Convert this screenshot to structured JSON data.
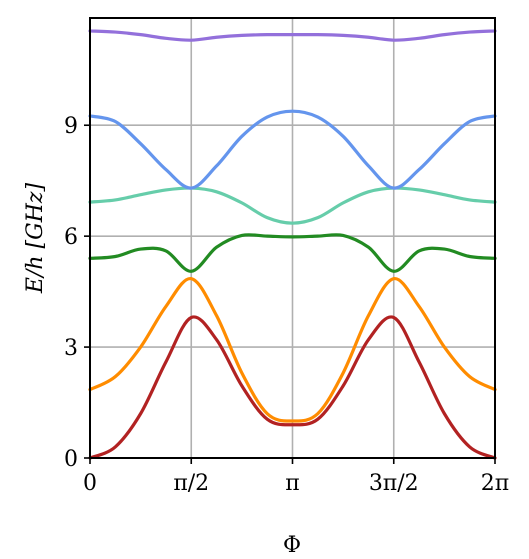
{
  "chart_data": {
    "type": "line",
    "xlabel": "Φ",
    "ylabel": "E/h [GHz]",
    "xlim": [
      0,
      6.2832
    ],
    "ylim": [
      0,
      11.9
    ],
    "grid": true,
    "xticks": [
      {
        "value": 0,
        "label": "0"
      },
      {
        "value": 1.5708,
        "label": "π/2"
      },
      {
        "value": 3.1416,
        "label": "π"
      },
      {
        "value": 4.7124,
        "label": "3π/2"
      },
      {
        "value": 6.2832,
        "label": "2π"
      }
    ],
    "yticks": [
      {
        "value": 0,
        "label": "0"
      },
      {
        "value": 3,
        "label": "3"
      },
      {
        "value": 6,
        "label": "6"
      },
      {
        "value": 9,
        "label": "9"
      }
    ],
    "x": [
      0,
      0.3927,
      0.7854,
      1.1781,
      1.5708,
      1.9635,
      2.3562,
      2.7489,
      3.1416,
      3.5343,
      3.927,
      4.3197,
      4.7124,
      5.1051,
      5.4978,
      5.8905,
      6.2832
    ],
    "series": [
      {
        "color": "#b22222",
        "values": [
          0.0,
          0.3,
          1.2,
          2.6,
          3.8,
          3.2,
          1.95,
          1.05,
          0.9,
          1.05,
          1.95,
          3.2,
          3.8,
          2.6,
          1.2,
          0.3,
          0.0
        ]
      },
      {
        "color": "#ff8c00",
        "values": [
          1.85,
          2.2,
          3.0,
          4.1,
          4.85,
          3.85,
          2.3,
          1.2,
          1.0,
          1.2,
          2.3,
          3.85,
          4.85,
          4.1,
          3.0,
          2.2,
          1.85
        ]
      },
      {
        "color": "#228b22",
        "values": [
          5.4,
          5.45,
          5.65,
          5.6,
          5.05,
          5.7,
          6.02,
          6.0,
          5.98,
          6.0,
          6.02,
          5.7,
          5.05,
          5.6,
          5.65,
          5.45,
          5.4
        ]
      },
      {
        "color": "#66cdaa",
        "values": [
          6.92,
          6.98,
          7.12,
          7.25,
          7.3,
          7.2,
          6.9,
          6.5,
          6.35,
          6.5,
          6.9,
          7.2,
          7.3,
          7.25,
          7.12,
          6.98,
          6.92
        ]
      },
      {
        "color": "#6495ed",
        "values": [
          9.25,
          9.1,
          8.5,
          7.8,
          7.3,
          7.9,
          8.7,
          9.22,
          9.38,
          9.22,
          8.7,
          7.9,
          7.3,
          7.8,
          8.5,
          9.1,
          9.25
        ]
      },
      {
        "color": "#9370db",
        "values": [
          11.55,
          11.52,
          11.45,
          11.35,
          11.3,
          11.38,
          11.43,
          11.45,
          11.45,
          11.45,
          11.43,
          11.38,
          11.3,
          11.35,
          11.45,
          11.52,
          11.55
        ]
      }
    ]
  }
}
